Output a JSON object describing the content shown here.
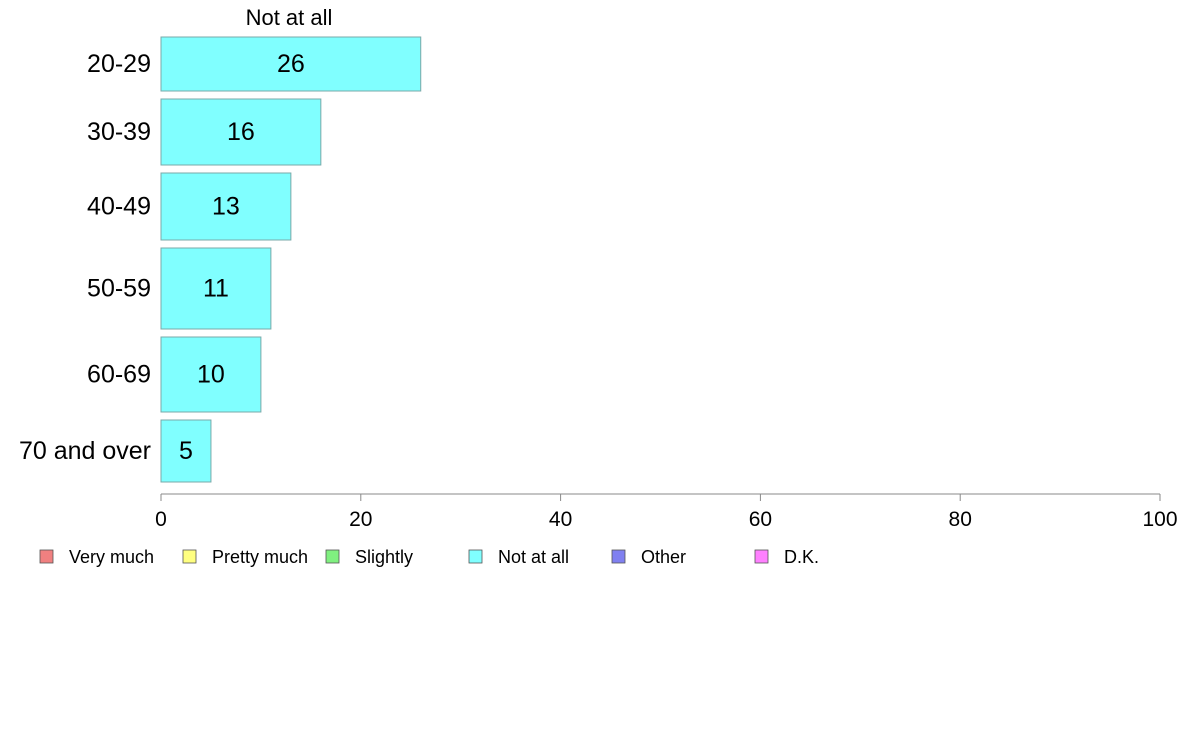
{
  "chart_data": {
    "type": "bar",
    "orientation": "horizontal",
    "title": "",
    "xlabel": "",
    "ylabel": "",
    "shown_series_label": "Not at all",
    "categories": [
      "20-29",
      "30-39",
      "40-49",
      "50-59",
      "60-69",
      "70 and over"
    ],
    "series": [
      {
        "name": "Not at all",
        "values": [
          26,
          16,
          13,
          11,
          10,
          5
        ],
        "value_labels": [
          "26",
          "16",
          "13",
          "11",
          "10",
          "5"
        ],
        "color": "#80ffff"
      }
    ],
    "xlim": [
      0,
      100
    ],
    "xticks": [
      0,
      20,
      40,
      60,
      80,
      100
    ],
    "xtick_labels": [
      "0",
      "20",
      "40",
      "60",
      "80",
      "100"
    ],
    "grid": false,
    "legend_placement": "bottom-left",
    "legend": [
      {
        "label": "Very much",
        "color": "#f08080"
      },
      {
        "label": "Pretty much",
        "color": "#ffff80"
      },
      {
        "label": "Slightly",
        "color": "#80f080"
      },
      {
        "label": "Not at all",
        "color": "#80ffff"
      },
      {
        "label": "Other",
        "color": "#8080f0"
      },
      {
        "label": "D.K.",
        "color": "#ff80ff"
      }
    ]
  }
}
